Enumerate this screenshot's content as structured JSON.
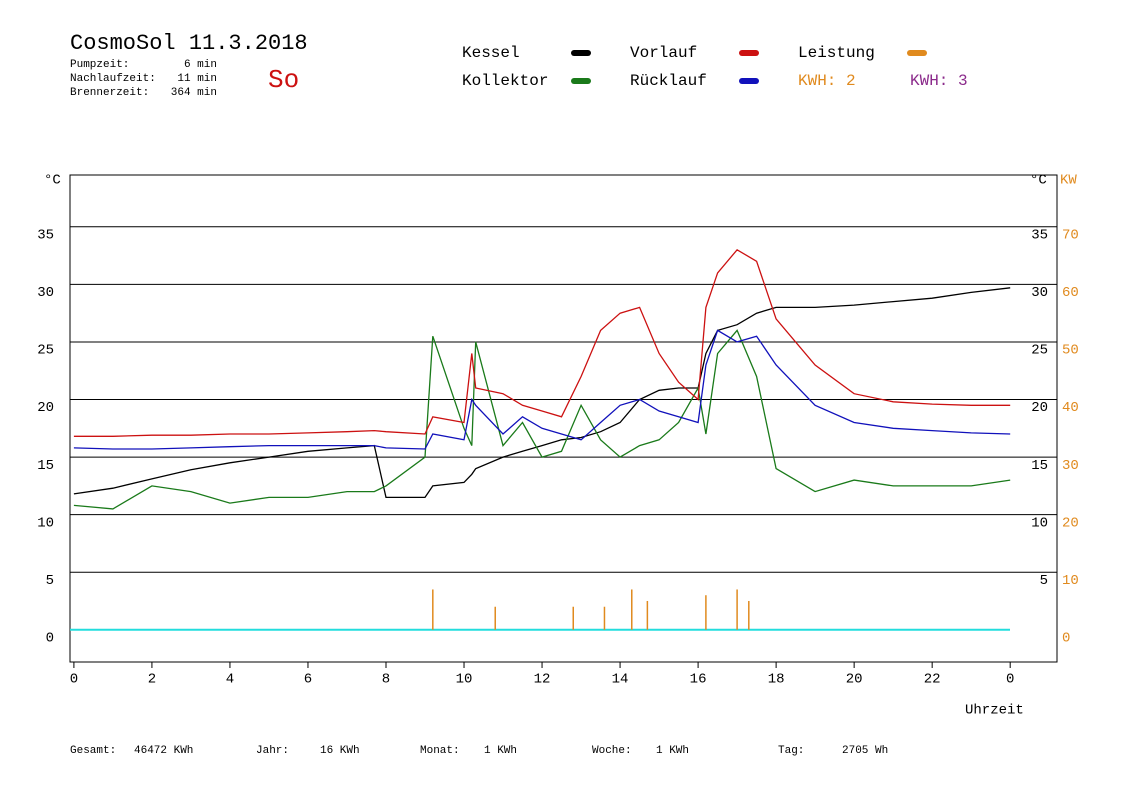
{
  "chart_data": {
    "type": "line",
    "title": "CosmoSol 11.3.2018",
    "info": [
      "Pumpzeit:",
      "6 min",
      "Nachlaufzeit:",
      "11 min",
      "Brennerzeit:",
      "364 min"
    ],
    "weekday": "So",
    "y_label": "°C",
    "y2_label": "KW",
    "x_label": "Uhrzeit",
    "legend_extra": [
      {
        "name": "KWH: 2",
        "color": "#e08a1e"
      },
      {
        "name": "KWH: 3",
        "color": "#8b2a8b"
      }
    ],
    "xlim": [
      -0.1,
      25.2
    ],
    "xticks": [
      0,
      2,
      4,
      6,
      8,
      10,
      12,
      14,
      16,
      18,
      20,
      22,
      {
        "value": 24,
        "label": "0"
      }
    ],
    "ylim": [
      -2.8,
      39.5
    ],
    "yticks": [
      0,
      5,
      10,
      15,
      20,
      25,
      30,
      35
    ],
    "y2lim": [
      -5.6,
      79
    ],
    "y2ticks": [
      0,
      10,
      20,
      30,
      40,
      50,
      60,
      70
    ],
    "grid": true,
    "x": [
      0,
      1,
      2,
      3,
      4,
      5,
      6,
      7,
      7.7,
      8,
      9,
      9.2,
      10,
      10.2,
      10.3,
      11,
      11.5,
      12,
      12.5,
      13,
      13.5,
      14,
      14.5,
      15,
      15.5,
      16,
      16.2,
      16.5,
      17,
      17.5,
      18,
      19,
      20,
      21,
      22,
      23,
      24
    ],
    "series": [
      {
        "name": "Kessel",
        "color": "#000000",
        "values": [
          11.8,
          12.3,
          13.1,
          13.9,
          14.5,
          15.0,
          15.5,
          15.8,
          16.0,
          11.5,
          11.5,
          12.5,
          12.8,
          13.5,
          14.0,
          15.0,
          15.5,
          16.0,
          16.5,
          16.7,
          17.2,
          18.0,
          20.0,
          20.8,
          21.0,
          21.0,
          24.0,
          26.0,
          26.5,
          27.5,
          28.0,
          28.0,
          28.2,
          28.5,
          28.8,
          29.3,
          29.7
        ]
      },
      {
        "name": "Kollektor",
        "color": "#1a7a1a",
        "values": [
          10.8,
          10.5,
          12.5,
          12.0,
          11.0,
          11.5,
          11.5,
          12.0,
          12.0,
          12.5,
          15.0,
          25.5,
          17.5,
          16.0,
          25.0,
          16.0,
          18.0,
          15.0,
          15.5,
          19.5,
          16.5,
          15.0,
          16.0,
          16.5,
          18.0,
          21.0,
          17.0,
          24.0,
          26.0,
          22.0,
          14.0,
          12.0,
          13.0,
          12.5,
          12.5,
          12.5,
          13.0
        ]
      },
      {
        "name": "Vorlauf",
        "color": "#cc1111",
        "values": [
          16.8,
          16.8,
          16.9,
          16.9,
          17.0,
          17.0,
          17.1,
          17.2,
          17.3,
          17.2,
          17.0,
          18.5,
          18.0,
          24.0,
          21.0,
          20.5,
          19.5,
          19.0,
          18.5,
          22.0,
          26.0,
          27.5,
          28.0,
          24.0,
          21.5,
          20.0,
          28.0,
          31.0,
          33.0,
          32.0,
          27.0,
          23.0,
          20.5,
          19.8,
          19.6,
          19.5,
          19.5
        ]
      },
      {
        "name": "Rücklauf",
        "color": "#1111bb",
        "values": [
          15.8,
          15.7,
          15.7,
          15.8,
          15.9,
          16.0,
          16.0,
          16.0,
          16.0,
          15.8,
          15.7,
          17.0,
          16.5,
          20.0,
          19.5,
          17.0,
          18.5,
          17.5,
          17.0,
          16.5,
          18.0,
          19.5,
          20.0,
          19.0,
          18.5,
          18.0,
          23.0,
          26.0,
          25.0,
          25.5,
          23.0,
          19.5,
          18.0,
          17.5,
          17.3,
          17.1,
          17.0
        ]
      },
      {
        "name": "Leistung",
        "color": "#e08a1e",
        "axis": "y2",
        "type": "spike",
        "x": [
          9.2,
          10.8,
          12.8,
          13.6,
          14.3,
          14.7,
          16.2,
          17.0,
          17.3
        ],
        "values": [
          7,
          4,
          4,
          4,
          7,
          5,
          6,
          7,
          5
        ]
      }
    ],
    "footer": [
      {
        "label": "Gesamt:",
        "value": "46472 KWh"
      },
      {
        "label": "Jahr:",
        "value": "16 KWh"
      },
      {
        "label": "Monat:",
        "value": "1 KWh"
      },
      {
        "label": "Woche:",
        "value": "1 KWh"
      },
      {
        "label": "Tag:",
        "value": "2705 Wh"
      }
    ]
  }
}
